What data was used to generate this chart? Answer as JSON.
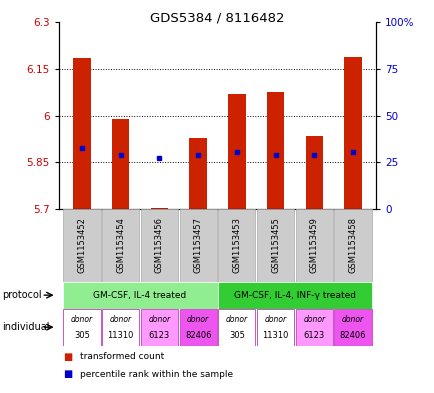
{
  "title": "GDS5384 / 8116482",
  "samples": [
    "GSM1153452",
    "GSM1153454",
    "GSM1153456",
    "GSM1153457",
    "GSM1153453",
    "GSM1153455",
    "GSM1153459",
    "GSM1153458"
  ],
  "red_values": [
    6.185,
    5.99,
    5.705,
    5.93,
    6.07,
    6.075,
    5.935,
    6.19
  ],
  "blue_values": [
    5.895,
    5.875,
    5.865,
    5.875,
    5.885,
    5.875,
    5.875,
    5.885
  ],
  "ymin": 5.7,
  "ymax": 6.3,
  "y_ticks": [
    5.7,
    5.85,
    6.0,
    6.15,
    6.3
  ],
  "y_tick_labels": [
    "5.7",
    "5.85",
    "6",
    "6.15",
    "6.3"
  ],
  "y2_tick_labels": [
    "0",
    "25",
    "50",
    "75",
    "100%"
  ],
  "dotted_lines": [
    5.85,
    6.0,
    6.15
  ],
  "protocol_groups": [
    {
      "label": "GM-CSF, IL-4 treated",
      "start": 0,
      "end": 3,
      "color": "#90ee90"
    },
    {
      "label": "GM-CSF, IL-4, INF-γ treated",
      "start": 4,
      "end": 7,
      "color": "#32cd32"
    }
  ],
  "indiv_colors": [
    "#ffffff",
    "#ffffff",
    "#ff99ff",
    "#ee55ee",
    "#ffffff",
    "#ffffff",
    "#ff99ff",
    "#ee55ee"
  ],
  "indiv_labels_top": [
    "donor",
    "donor",
    "donor",
    "donor",
    "donor",
    "donor",
    "donor",
    "donor"
  ],
  "indiv_labels_bot": [
    "305",
    "11310",
    "6123",
    "82406",
    "305",
    "11310",
    "6123",
    "82406"
  ],
  "indiv_edge": "#cc55cc",
  "bar_color": "#cc2200",
  "dot_color": "#0000cc",
  "label_color_red": "#cc0000",
  "label_color_blue": "#0000cc",
  "proto_label_color": "#000000",
  "sample_box_color": "#cccccc",
  "sample_box_edge": "#aaaaaa"
}
